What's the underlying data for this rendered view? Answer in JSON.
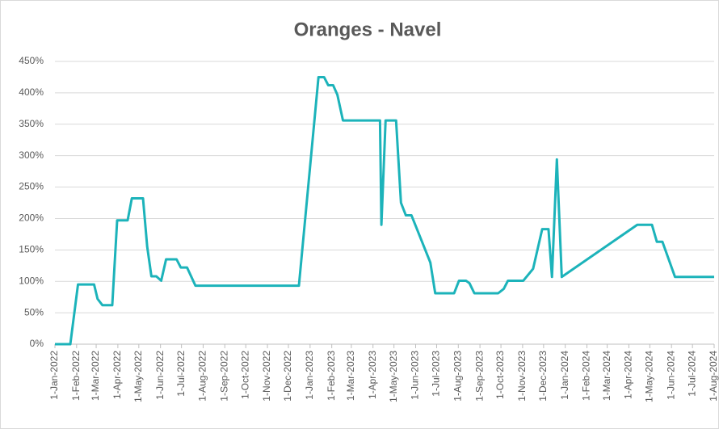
{
  "chart_data": {
    "type": "line",
    "title": "Oranges - Navel",
    "x": [
      "2022-01-01",
      "2022-01-23",
      "2022-02-03",
      "2022-02-26",
      "2022-03-03",
      "2022-03-10",
      "2022-03-24",
      "2022-03-31",
      "2022-04-15",
      "2022-04-21",
      "2022-05-07",
      "2022-05-13",
      "2022-05-19",
      "2022-05-26",
      "2022-06-02",
      "2022-06-09",
      "2022-06-24",
      "2022-06-30",
      "2022-07-09",
      "2022-07-21",
      "2022-12-16",
      "2023-01-13",
      "2023-01-21",
      "2023-01-27",
      "2023-02-03",
      "2023-02-09",
      "2023-02-17",
      "2023-04-11",
      "2023-04-13",
      "2023-04-19",
      "2023-05-04",
      "2023-05-11",
      "2023-05-18",
      "2023-05-26",
      "2023-06-22",
      "2023-06-29",
      "2023-07-26",
      "2023-08-02",
      "2023-08-12",
      "2023-08-17",
      "2023-08-24",
      "2023-09-27",
      "2023-10-05",
      "2023-10-11",
      "2023-11-02",
      "2023-11-16",
      "2023-11-29",
      "2023-12-08",
      "2023-12-13",
      "2023-12-20",
      "2023-12-27",
      "2024-04-13",
      "2024-05-04",
      "2024-05-11",
      "2024-05-19",
      "2024-06-06",
      "2024-08-01"
    ],
    "series": [
      {
        "name": "Oranges - Navel",
        "color": "#1cb3ba",
        "values": [
          0,
          0,
          95,
          95,
          72,
          62,
          62,
          197,
          197,
          232,
          232,
          155,
          108,
          108,
          101,
          135,
          135,
          122,
          122,
          93,
          93,
          425,
          425,
          412,
          412,
          397,
          356,
          356,
          190,
          356,
          356,
          225,
          205,
          205,
          130,
          81,
          81,
          101,
          101,
          97,
          81,
          81,
          88,
          101,
          101,
          120,
          183,
          183,
          107,
          294,
          107,
          190,
          190,
          163,
          163,
          107,
          107
        ]
      }
    ],
    "xlim": [
      "2022-01-01",
      "2024-08-01"
    ],
    "xticks": [
      {
        "value": "2022-01-01",
        "label": "1-Jan-2022"
      },
      {
        "value": "2022-02-01",
        "label": "1-Feb-2022"
      },
      {
        "value": "2022-03-01",
        "label": "1-Mar-2022"
      },
      {
        "value": "2022-04-01",
        "label": "1-Apr-2022"
      },
      {
        "value": "2022-05-01",
        "label": "1-May-2022"
      },
      {
        "value": "2022-06-01",
        "label": "1-Jun-2022"
      },
      {
        "value": "2022-07-01",
        "label": "1-Jul-2022"
      },
      {
        "value": "2022-08-01",
        "label": "1-Aug-2022"
      },
      {
        "value": "2022-09-01",
        "label": "1-Sep-2022"
      },
      {
        "value": "2022-10-01",
        "label": "1-Oct-2022"
      },
      {
        "value": "2022-11-01",
        "label": "1-Nov-2022"
      },
      {
        "value": "2022-12-01",
        "label": "1-Dec-2022"
      },
      {
        "value": "2023-01-01",
        "label": "1-Jan-2023"
      },
      {
        "value": "2023-02-01",
        "label": "1-Feb-2023"
      },
      {
        "value": "2023-03-01",
        "label": "1-Mar-2023"
      },
      {
        "value": "2023-04-01",
        "label": "1-Apr-2023"
      },
      {
        "value": "2023-05-01",
        "label": "1-May-2023"
      },
      {
        "value": "2023-06-01",
        "label": "1-Jun-2023"
      },
      {
        "value": "2023-07-01",
        "label": "1-Jul-2023"
      },
      {
        "value": "2023-08-01",
        "label": "1-Aug-2023"
      },
      {
        "value": "2023-09-01",
        "label": "1-Sep-2023"
      },
      {
        "value": "2023-10-01",
        "label": "1-Oct-2023"
      },
      {
        "value": "2023-11-01",
        "label": "1-Nov-2023"
      },
      {
        "value": "2023-12-01",
        "label": "1-Dec-2023"
      },
      {
        "value": "2024-01-01",
        "label": "1-Jan-2024"
      },
      {
        "value": "2024-02-01",
        "label": "1-Feb-2024"
      },
      {
        "value": "2024-03-01",
        "label": "1-Mar-2024"
      },
      {
        "value": "2024-04-01",
        "label": "1-Apr-2024"
      },
      {
        "value": "2024-05-01",
        "label": "1-May-2024"
      },
      {
        "value": "2024-06-01",
        "label": "1-Jun-2024"
      },
      {
        "value": "2024-07-01",
        "label": "1-Jul-2024"
      },
      {
        "value": "2024-08-01",
        "label": "1-Aug-2024"
      }
    ],
    "ylim": [
      0,
      450
    ],
    "yticks": [
      {
        "value": 0,
        "label": "0%"
      },
      {
        "value": 50,
        "label": "50%"
      },
      {
        "value": 100,
        "label": "100%"
      },
      {
        "value": 150,
        "label": "150%"
      },
      {
        "value": 200,
        "label": "200%"
      },
      {
        "value": 250,
        "label": "250%"
      },
      {
        "value": 300,
        "label": "300%"
      },
      {
        "value": 350,
        "label": "350%"
      },
      {
        "value": 400,
        "label": "400%"
      },
      {
        "value": 450,
        "label": "450%"
      }
    ],
    "grid": true
  }
}
